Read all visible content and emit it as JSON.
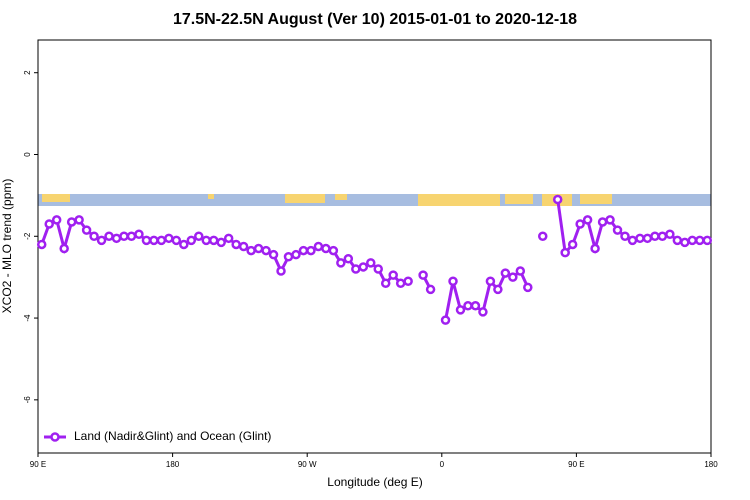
{
  "chart_data": {
    "type": "line",
    "title": "17.5N-22.5N August (Ver 10)   2015-01-01 to 2020-12-18",
    "xlabel": "Longitude (deg E)",
    "ylabel": "XCO2 - MLO trend (ppm)",
    "x": [
      92.5,
      97.5,
      102.5,
      107.5,
      112.5,
      117.5,
      122.5,
      127.5,
      132.5,
      137.5,
      142.5,
      147.5,
      152.5,
      157.5,
      162.5,
      167.5,
      172.5,
      177.5,
      182.5,
      187.5,
      192.5,
      197.5,
      202.5,
      207.5,
      212.5,
      217.5,
      222.5,
      227.5,
      232.5,
      237.5,
      242.5,
      247.5,
      252.5,
      257.5,
      262.5,
      267.5,
      272.5,
      277.5,
      282.5,
      287.5,
      292.5,
      297.5,
      302.5,
      307.5,
      312.5,
      317.5,
      322.5,
      327.5,
      332.5,
      337.5,
      342.5,
      347.5,
      352.5,
      357.5,
      362.5,
      367.5,
      372.5,
      377.5,
      382.5,
      387.5,
      392.5,
      397.5,
      402.5,
      407.5,
      412.5,
      417.5,
      422.5,
      427.5,
      432.5,
      437.5,
      442.5,
      447.5,
      452.5,
      457.5,
      462.5,
      467.5,
      472.5,
      477.5,
      482.5,
      487.5,
      492.5,
      497.5,
      502.5,
      507.5,
      512.5,
      517.5,
      522.5,
      527.5,
      532.5,
      537.5
    ],
    "series": [
      {
        "name": "Land (Nadir&Glint) and Ocean (Glint)",
        "color": "#a020f0",
        "values": [
          -2.2,
          -1.7,
          -1.6,
          -2.3,
          -1.65,
          -1.6,
          -1.85,
          -2.0,
          -2.1,
          -2.0,
          -2.05,
          -2.0,
          -2.0,
          -1.95,
          -2.1,
          -2.1,
          -2.1,
          -2.05,
          -2.1,
          -2.2,
          -2.1,
          -2.0,
          -2.1,
          -2.1,
          -2.15,
          -2.05,
          -2.2,
          -2.25,
          -2.35,
          -2.3,
          -2.35,
          -2.45,
          -2.85,
          -2.5,
          -2.45,
          -2.35,
          -2.35,
          -2.25,
          -2.3,
          -2.35,
          -2.65,
          -2.55,
          -2.8,
          -2.75,
          -2.65,
          -2.8,
          -3.15,
          -2.95,
          -3.15,
          -3.1,
          null,
          -2.95,
          -3.3,
          null,
          -4.05,
          -3.1,
          -3.8,
          -3.7,
          -3.7,
          -3.85,
          -3.1,
          -3.3,
          -2.9,
          -3.0,
          -2.85,
          -3.25,
          null,
          -2.0,
          null,
          -1.1,
          -2.4,
          -2.2,
          -1.7,
          -1.6,
          -2.3,
          -1.65,
          -1.6,
          -1.85,
          -2.0,
          -2.1,
          -2.05,
          -2.05,
          -2.0,
          -2.0,
          -1.95,
          -2.1,
          -2.15,
          -2.1,
          -2.1,
          -2.1
        ]
      }
    ],
    "xlim": [
      90,
      540
    ],
    "xticks": [
      {
        "value": 90,
        "label": "90 E"
      },
      180,
      {
        "value": 270,
        "label": "90 W"
      },
      {
        "value": 360,
        "label": "0"
      },
      {
        "value": 450,
        "label": "90 E"
      },
      {
        "value": 540,
        "label": "180"
      }
    ],
    "ylim": [
      -7.3,
      2.8
    ],
    "yticks": [
      2,
      0,
      -2,
      -4,
      -6
    ],
    "legend": "bottom-left"
  }
}
